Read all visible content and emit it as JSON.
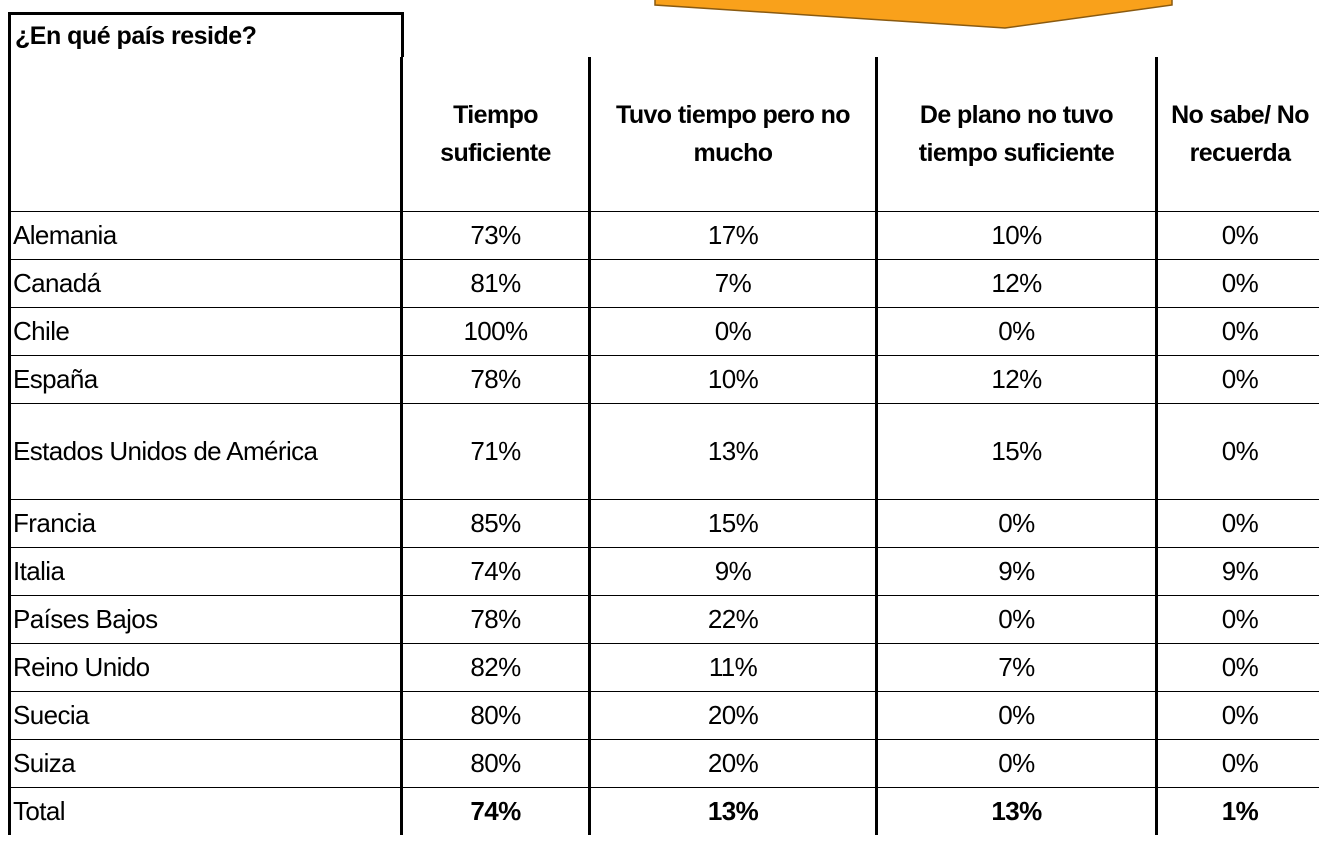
{
  "header": {
    "title": "¿En qué país reside?"
  },
  "table": {
    "columns": [
      "Tiempo suficiente",
      "Tuvo tiempo pero no mucho",
      "De plano no tuvo tiempo suficiente",
      "No sabe/ No recuerda"
    ],
    "rows": [
      {
        "label": "Alemania",
        "values": [
          "73%",
          "17%",
          "10%",
          "0%"
        ]
      },
      {
        "label": "Canadá",
        "values": [
          "81%",
          "7%",
          "12%",
          "0%"
        ]
      },
      {
        "label": "Chile",
        "values": [
          "100%",
          "0%",
          "0%",
          "0%"
        ]
      },
      {
        "label": "España",
        "values": [
          "78%",
          "10%",
          "12%",
          "0%"
        ]
      },
      {
        "label": "Estados Unidos de América",
        "values": [
          "71%",
          "13%",
          "15%",
          "0%"
        ]
      },
      {
        "label": "Francia",
        "values": [
          "85%",
          "15%",
          "0%",
          "0%"
        ]
      },
      {
        "label": "Italia",
        "values": [
          "74%",
          "9%",
          "9%",
          "9%"
        ]
      },
      {
        "label": "Países Bajos",
        "values": [
          "78%",
          "22%",
          "0%",
          "0%"
        ]
      },
      {
        "label": "Reino Unido",
        "values": [
          "82%",
          "11%",
          "7%",
          "0%"
        ]
      },
      {
        "label": "Suecia",
        "values": [
          "80%",
          "20%",
          "0%",
          "0%"
        ]
      },
      {
        "label": "Suiza",
        "values": [
          "80%",
          "20%",
          "0%",
          "0%"
        ]
      },
      {
        "label": "Total",
        "values": [
          "74%",
          "13%",
          "13%",
          "1%"
        ]
      }
    ]
  }
}
